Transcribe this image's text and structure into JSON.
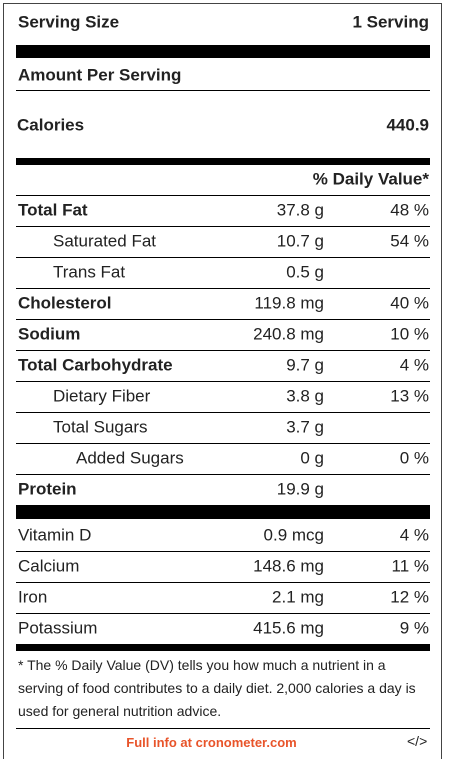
{
  "header": {
    "serving_label": "Serving Size",
    "serving_value": "1 Serving",
    "amount_per_serving": "Amount Per Serving",
    "calories_label": "Calories",
    "calories_value": "440.9",
    "daily_value_header": "% Daily Value*"
  },
  "nutrients": [
    {
      "name": "Total Fat",
      "amount": "37.8 g",
      "daily_value": "48 %",
      "bold": true,
      "indent": 0
    },
    {
      "name": "Saturated Fat",
      "amount": "10.7 g",
      "daily_value": "54 %",
      "bold": false,
      "indent": 1
    },
    {
      "name": "Trans Fat",
      "amount": "0.5 g",
      "bold": false,
      "indent": 1
    },
    {
      "name": "Cholesterol",
      "amount": "119.8 mg",
      "daily_value": "40 %",
      "bold": true,
      "indent": 0
    },
    {
      "name": "Sodium",
      "amount": "240.8 mg",
      "daily_value": "10 %",
      "bold": true,
      "indent": 0
    },
    {
      "name": "Total Carbohydrate",
      "amount": "9.7 g",
      "daily_value": "4 %",
      "bold": true,
      "indent": 0
    },
    {
      "name": "Dietary Fiber",
      "amount": "3.8 g",
      "daily_value": "13 %",
      "bold": false,
      "indent": 1
    },
    {
      "name": "Total Sugars",
      "amount": "3.7 g",
      "bold": false,
      "indent": 1
    },
    {
      "name": "Added Sugars",
      "amount": "0 g",
      "daily_value": "0 %",
      "bold": false,
      "indent": 2
    },
    {
      "name": "Protein",
      "amount": "19.9 g",
      "bold": true,
      "indent": 0
    }
  ],
  "vitamins": [
    {
      "name": "Vitamin D",
      "amount": "0.9 mcg",
      "daily_value": "4 %"
    },
    {
      "name": "Calcium",
      "amount": "148.6 mg",
      "daily_value": "11 %"
    },
    {
      "name": "Iron",
      "amount": "2.1 mg",
      "daily_value": "12 %"
    },
    {
      "name": "Potassium",
      "amount": "415.6 mg",
      "daily_value": "9 %"
    }
  ],
  "footnote": "* The % Daily Value (DV) tells you how much a nutrient in a serving of food contributes to a daily diet. 2,000 calories a day is used for general nutrition advice.",
  "footer": {
    "link": "Full info at cronometer.com",
    "embed": "</>"
  }
}
